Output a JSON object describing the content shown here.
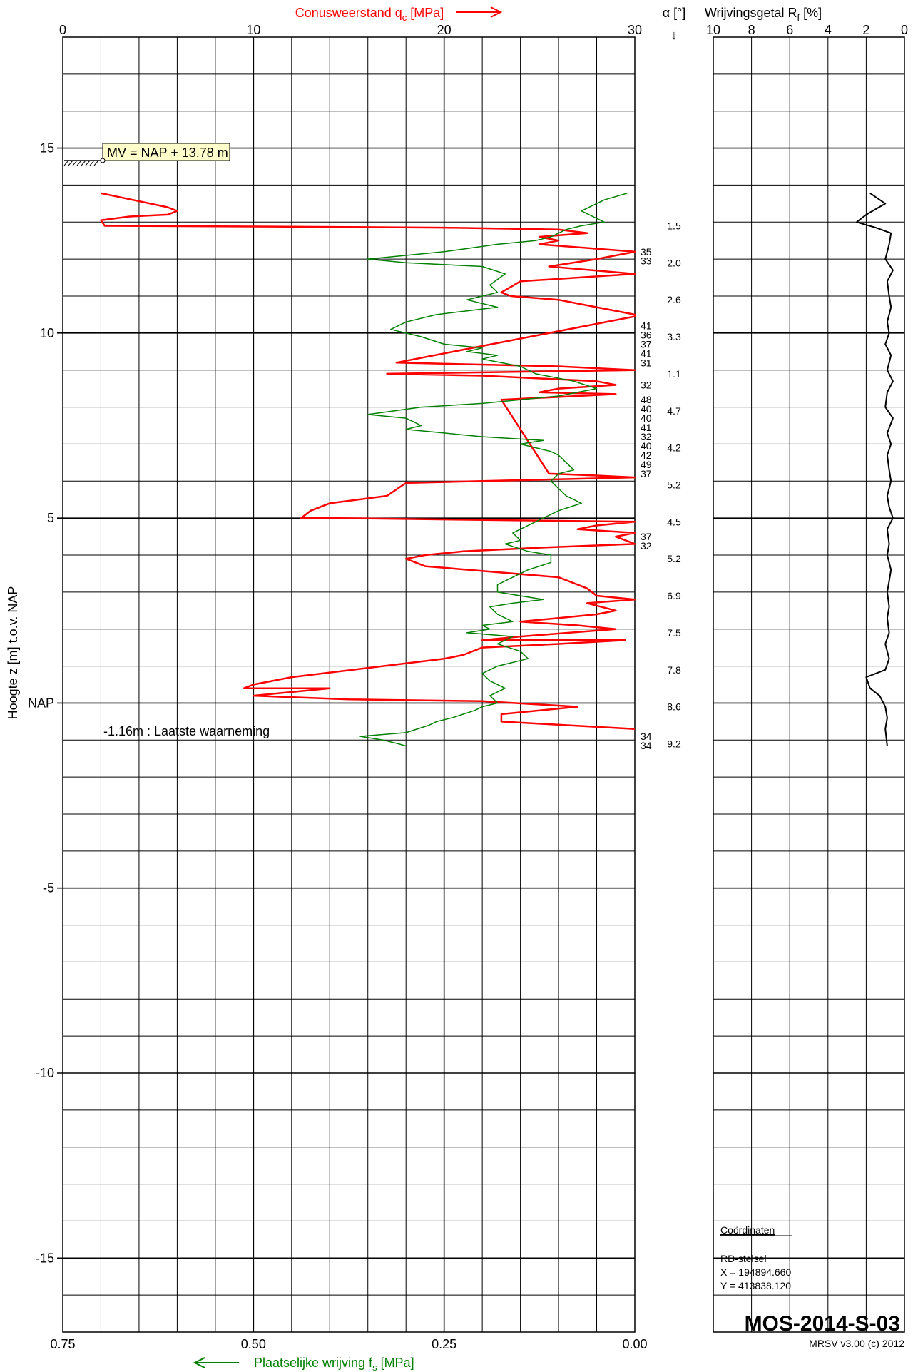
{
  "chart_data": [
    {
      "type": "line",
      "title": "Conusweerstand qc [MPa]",
      "ylabel": "Hoogte z [m]  t.o.v. NAP",
      "xlabel_top": "Conusweerstand qc [MPa]",
      "xlabel_bottom": "Plaatselijke wrijving fs [MPa]",
      "xlim_qc": [
        0,
        30
      ],
      "xlim_fs": [
        0.75,
        0
      ],
      "ylim": [
        -17,
        18
      ],
      "grid": true,
      "x_ticks_top": [
        "0",
        "10",
        "20",
        "30"
      ],
      "x_ticks_bottom": [
        "0.75",
        "0.50",
        "0.25",
        "0.00"
      ],
      "y_ticks": [
        {
          "v": 15,
          "label": "15"
        },
        {
          "v": 10,
          "label": "10"
        },
        {
          "v": 5,
          "label": "5"
        },
        {
          "v": 0,
          "label": "NAP"
        },
        {
          "v": -5,
          "label": "-5"
        },
        {
          "v": -10,
          "label": "-10"
        },
        {
          "v": -15,
          "label": "-15"
        }
      ],
      "series": [
        {
          "name": "qc",
          "unit": "MPa",
          "color": "#ff0000",
          "points": [
            [
              2.0,
              13.78
            ],
            [
              5.5,
              13.4
            ],
            [
              6.0,
              13.3
            ],
            [
              5.5,
              13.2
            ],
            [
              3.5,
              13.15
            ],
            [
              2.0,
              13.05
            ],
            [
              2.2,
              12.9
            ],
            [
              10,
              12.88
            ],
            [
              20,
              12.85
            ],
            [
              26,
              12.8
            ],
            [
              27.5,
              12.7
            ],
            [
              25,
              12.6
            ],
            [
              26,
              12.5
            ],
            [
              25,
              12.4
            ],
            [
              30,
              12.2
            ],
            [
              28,
              12.0
            ],
            [
              25.5,
              11.8
            ],
            [
              30,
              11.6
            ],
            [
              24,
              11.4
            ],
            [
              23,
              11.1
            ],
            [
              23.5,
              11.0
            ],
            [
              26,
              10.9
            ],
            [
              28,
              10.7
            ],
            [
              30,
              10.5
            ],
            [
              30,
              10.45
            ],
            [
              17.5,
              9.2
            ],
            [
              26,
              9.1
            ],
            [
              30,
              9.0
            ],
            [
              17,
              8.9
            ],
            [
              22,
              8.85
            ],
            [
              28,
              8.7
            ],
            [
              29,
              8.6
            ],
            [
              26,
              8.5
            ],
            [
              25,
              8.4
            ],
            [
              29,
              8.35
            ],
            [
              23,
              8.2
            ],
            [
              25.5,
              6.2
            ],
            [
              28,
              6.15
            ],
            [
              30,
              6.1
            ],
            [
              22,
              6.0
            ],
            [
              18,
              5.95
            ],
            [
              17,
              5.6
            ],
            [
              14,
              5.4
            ],
            [
              13,
              5.2
            ],
            [
              12.5,
              5.0
            ],
            [
              14,
              5.0
            ],
            [
              30,
              4.9
            ],
            [
              28,
              4.8
            ],
            [
              27,
              4.7
            ],
            [
              30,
              4.6
            ],
            [
              29,
              4.5
            ],
            [
              30,
              4.3
            ],
            [
              25,
              4.2
            ],
            [
              21,
              4.1
            ],
            [
              19,
              4.0
            ],
            [
              18,
              3.9
            ],
            [
              19,
              3.7
            ],
            [
              26,
              3.4
            ],
            [
              27.5,
              3.1
            ],
            [
              28,
              2.9
            ],
            [
              30,
              2.8
            ],
            [
              27.5,
              2.7
            ],
            [
              29,
              2.5
            ],
            [
              28,
              2.4
            ],
            [
              26,
              2.3
            ],
            [
              24,
              2.2
            ],
            [
              27,
              2.1
            ],
            [
              29,
              2.0
            ],
            [
              24,
              1.8
            ],
            [
              22,
              1.7
            ],
            [
              29.5,
              1.7
            ],
            [
              26,
              1.6
            ],
            [
              22,
              1.5
            ],
            [
              21,
              1.3
            ],
            [
              20,
              1.2
            ],
            [
              12,
              0.7
            ],
            [
              10,
              0.5
            ],
            [
              9.5,
              0.4
            ],
            [
              14,
              0.4
            ],
            [
              10,
              0.2
            ],
            [
              15,
              0.1
            ],
            [
              22,
              0.05
            ],
            [
              27,
              -0.1
            ],
            [
              23,
              -0.3
            ],
            [
              23,
              -0.5
            ],
            [
              30,
              -0.7
            ]
          ]
        },
        {
          "name": "fs",
          "unit": "MPa",
          "color": "#008000",
          "points": [
            [
              0.01,
              13.78
            ],
            [
              0.04,
              13.6
            ],
            [
              0.07,
              13.3
            ],
            [
              0.04,
              13.0
            ],
            [
              0.07,
              12.9
            ],
            [
              0.09,
              12.8
            ],
            [
              0.11,
              12.6
            ],
            [
              0.13,
              12.5
            ],
            [
              0.18,
              12.4
            ],
            [
              0.25,
              12.2
            ],
            [
              0.35,
              12.0
            ],
            [
              0.3,
              11.9
            ],
            [
              0.2,
              11.8
            ],
            [
              0.17,
              11.6
            ],
            [
              0.19,
              11.3
            ],
            [
              0.18,
              11.1
            ],
            [
              0.2,
              11.0
            ],
            [
              0.22,
              10.9
            ],
            [
              0.18,
              10.7
            ],
            [
              0.26,
              10.5
            ],
            [
              0.3,
              10.3
            ],
            [
              0.32,
              10.1
            ],
            [
              0.28,
              9.9
            ],
            [
              0.25,
              9.7
            ],
            [
              0.2,
              9.6
            ],
            [
              0.22,
              9.5
            ],
            [
              0.18,
              9.4
            ],
            [
              0.2,
              9.3
            ],
            [
              0.15,
              9.1
            ],
            [
              0.13,
              8.9
            ],
            [
              0.08,
              8.7
            ],
            [
              0.05,
              8.5
            ],
            [
              0.1,
              8.3
            ],
            [
              0.2,
              8.1
            ],
            [
              0.28,
              8.0
            ],
            [
              0.35,
              7.8
            ],
            [
              0.3,
              7.7
            ],
            [
              0.28,
              7.5
            ],
            [
              0.3,
              7.4
            ],
            [
              0.25,
              7.3
            ],
            [
              0.2,
              7.2
            ],
            [
              0.12,
              7.1
            ],
            [
              0.15,
              7.0
            ],
            [
              0.11,
              6.8
            ],
            [
              0.1,
              6.7
            ],
            [
              0.09,
              6.5
            ],
            [
              0.08,
              6.3
            ],
            [
              0.1,
              6.2
            ],
            [
              0.11,
              6.0
            ],
            [
              0.1,
              5.8
            ],
            [
              0.09,
              5.6
            ],
            [
              0.07,
              5.4
            ],
            [
              0.1,
              5.2
            ],
            [
              0.12,
              5.0
            ],
            [
              0.14,
              4.8
            ],
            [
              0.16,
              4.6
            ],
            [
              0.15,
              4.4
            ],
            [
              0.17,
              4.3
            ],
            [
              0.14,
              4.1
            ],
            [
              0.11,
              4.0
            ],
            [
              0.11,
              3.8
            ],
            [
              0.14,
              3.6
            ],
            [
              0.16,
              3.4
            ],
            [
              0.18,
              3.2
            ],
            [
              0.18,
              3.0
            ],
            [
              0.12,
              2.8
            ],
            [
              0.16,
              2.7
            ],
            [
              0.19,
              2.6
            ],
            [
              0.18,
              2.4
            ],
            [
              0.16,
              2.2
            ],
            [
              0.2,
              2.1
            ],
            [
              0.19,
              2.0
            ],
            [
              0.22,
              1.9
            ],
            [
              0.16,
              1.8
            ],
            [
              0.18,
              1.6
            ],
            [
              0.15,
              1.4
            ],
            [
              0.14,
              1.2
            ],
            [
              0.18,
              1.0
            ],
            [
              0.2,
              0.8
            ],
            [
              0.19,
              0.6
            ],
            [
              0.17,
              0.4
            ],
            [
              0.19,
              0.2
            ],
            [
              0.18,
              0.0
            ],
            [
              0.2,
              -0.1
            ],
            [
              0.21,
              -0.2
            ],
            [
              0.24,
              -0.4
            ],
            [
              0.26,
              -0.5
            ],
            [
              0.27,
              -0.6
            ],
            [
              0.3,
              -0.8
            ],
            [
              0.36,
              -0.9
            ],
            [
              0.33,
              -1.0
            ],
            [
              0.31,
              -1.1
            ],
            [
              0.3,
              -1.16
            ]
          ]
        },
        {
          "name": "Rf",
          "unit": "%",
          "color": "#000000",
          "xlim": [
            10,
            0
          ],
          "points": [
            [
              1.8,
              13.78
            ],
            [
              1.0,
              13.5
            ],
            [
              2.0,
              13.2
            ],
            [
              2.5,
              13.0
            ],
            [
              1.5,
              12.85
            ],
            [
              0.7,
              12.7
            ],
            [
              0.8,
              12.4
            ],
            [
              1.0,
              12.0
            ],
            [
              0.6,
              11.7
            ],
            [
              0.9,
              11.4
            ],
            [
              0.8,
              11.0
            ],
            [
              0.7,
              10.7
            ],
            [
              0.9,
              10.3
            ],
            [
              0.8,
              10.0
            ],
            [
              1.0,
              9.7
            ],
            [
              0.7,
              9.4
            ],
            [
              0.9,
              9.0
            ],
            [
              0.6,
              8.7
            ],
            [
              0.9,
              8.4
            ],
            [
              1.0,
              8.0
            ],
            [
              0.6,
              7.7
            ],
            [
              0.9,
              7.3
            ],
            [
              0.7,
              7.0
            ],
            [
              0.9,
              6.7
            ],
            [
              0.8,
              6.3
            ],
            [
              0.7,
              6.0
            ],
            [
              0.9,
              5.6
            ],
            [
              0.8,
              5.3
            ],
            [
              0.6,
              5.0
            ],
            [
              0.9,
              4.7
            ],
            [
              0.8,
              4.3
            ],
            [
              0.9,
              4.0
            ],
            [
              0.7,
              3.6
            ],
            [
              0.8,
              3.3
            ],
            [
              0.9,
              3.0
            ],
            [
              0.8,
              2.6
            ],
            [
              0.9,
              2.3
            ],
            [
              0.8,
              1.9
            ],
            [
              1.0,
              1.6
            ],
            [
              0.8,
              1.2
            ],
            [
              1.0,
              0.9
            ],
            [
              2.0,
              0.7
            ],
            [
              1.8,
              0.4
            ],
            [
              1.3,
              0.2
            ],
            [
              1.0,
              -0.1
            ],
            [
              0.9,
              -0.4
            ],
            [
              1.0,
              -0.7
            ],
            [
              0.9,
              -1.16
            ]
          ]
        }
      ]
    }
  ],
  "labels": {
    "qc_axis_label": "Conusweerstand q",
    "qc_sub": "c",
    "qc_unit": " [MPa]",
    "fs_axis_label": "Plaatselijke wrijving f",
    "fs_sub": "s",
    "fs_unit": " [MPa]",
    "rf_axis_label": "Wrijvingsgetal R",
    "rf_sub": "f",
    "rf_unit": " [%]",
    "y_axis_label": "Hoogte z [m]  t.o.v. NAP",
    "alpha_label": "α [°]",
    "alpha_arrow": "↓",
    "mv_label": "MV = NAP + 13.78 m",
    "last_obs": "-1.16m : Laatste waarneming",
    "coords_title": "Coördinaten",
    "coords_system": "RD-stelsel",
    "coords_x": "X =  194894.660",
    "coords_y": "Y =  413838.120",
    "sounding_id": "MOS-2014-S-03",
    "software": "MRSV v3.00 (c) 2012"
  },
  "rf_ticks": [
    "10",
    "8",
    "6",
    "4",
    "2",
    "0"
  ],
  "alpha_values": [
    {
      "z": 12.9,
      "label": "1.5"
    },
    {
      "z": 11.9,
      "label": "2.0"
    },
    {
      "z": 10.9,
      "label": "2.6"
    },
    {
      "z": 9.9,
      "label": "3.3"
    },
    {
      "z": 8.9,
      "label": "1.1"
    },
    {
      "z": 7.9,
      "label": "4.7"
    },
    {
      "z": 6.9,
      "label": "4.2"
    },
    {
      "z": 5.9,
      "label": "5.2"
    },
    {
      "z": 4.9,
      "label": "4.5"
    },
    {
      "z": 3.9,
      "label": "5.2"
    },
    {
      "z": 2.9,
      "label": "6.9"
    },
    {
      "z": 1.9,
      "label": "7.5"
    },
    {
      "z": 0.9,
      "label": "7.8"
    },
    {
      "z": -0.1,
      "label": "8.6"
    },
    {
      "z": -1.1,
      "label": "9.2"
    }
  ],
  "offscale_values": [
    {
      "z": 12.2,
      "label": "35"
    },
    {
      "z": 11.95,
      "label": "33"
    },
    {
      "z": 10.2,
      "label": "41"
    },
    {
      "z": 9.95,
      "label": "36"
    },
    {
      "z": 9.7,
      "label": "37"
    },
    {
      "z": 9.45,
      "label": "41"
    },
    {
      "z": 9.2,
      "label": "31"
    },
    {
      "z": 8.6,
      "label": "32"
    },
    {
      "z": 8.2,
      "label": "48"
    },
    {
      "z": 7.95,
      "label": "40"
    },
    {
      "z": 7.7,
      "label": "40"
    },
    {
      "z": 7.45,
      "label": "41"
    },
    {
      "z": 7.2,
      "label": "32"
    },
    {
      "z": 6.95,
      "label": "40"
    },
    {
      "z": 6.7,
      "label": "42"
    },
    {
      "z": 6.45,
      "label": "49"
    },
    {
      "z": 6.2,
      "label": "37"
    },
    {
      "z": 4.5,
      "label": "37"
    },
    {
      "z": 4.25,
      "label": "32"
    },
    {
      "z": -0.9,
      "label": "34"
    },
    {
      "z": -1.15,
      "label": "34"
    }
  ]
}
